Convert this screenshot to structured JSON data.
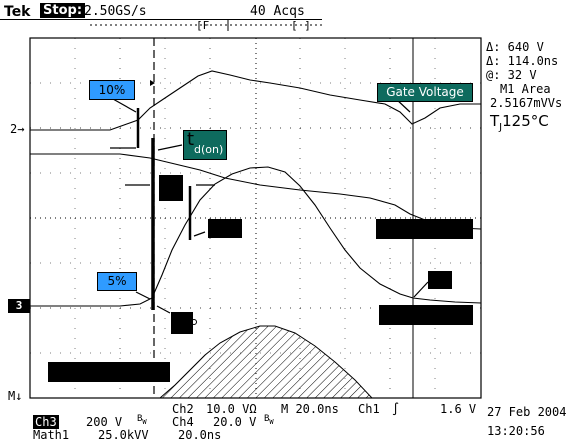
{
  "header": {
    "brand": "Tek",
    "state": "Stop:",
    "sample_rate": "2.50GS/s",
    "acqs": "40 Acqs"
  },
  "readout": {
    "delta_v": "Δ: 640 V",
    "delta_t": "Δ: 114.0ns",
    "at": "@: 32 V",
    "m1_area_label": "M1 Area",
    "m1_area_value": "2.5167mVVs",
    "tj_label": "T",
    "tj_sub": "J",
    "tj_value": "125°C"
  },
  "labels": {
    "ten_pct": "10%",
    "five_pct": "5%",
    "td_on_main": "t",
    "td_on_sub": "d(on)",
    "gate_voltage": "Gate Voltage"
  },
  "markers": {
    "ch2": "2→",
    "ch3": "3",
    "math": "M↓"
  },
  "footer": {
    "ch3": "Ch3",
    "ch3_scale": "200 V",
    "bw": "B",
    "bw_sub": "W",
    "ch2": "Ch2",
    "ch2_scale": "10.0 VΩ",
    "ch4": "Ch4",
    "ch4_scale": "20.0 V",
    "timebase": "M 20.0ns",
    "trig_src": "Ch1",
    "trig_slope": "∫",
    "trig_level": "1.6 V",
    "math1": "Math1",
    "math1_scale": "25.0kVV",
    "math1_time": "20.0ns",
    "date": "27 Feb 2004",
    "time": "13:20:56"
  },
  "colors": {
    "blue_label": "#2f9bff",
    "teal_label": "#0e6b5e",
    "trace": "#000000"
  }
}
